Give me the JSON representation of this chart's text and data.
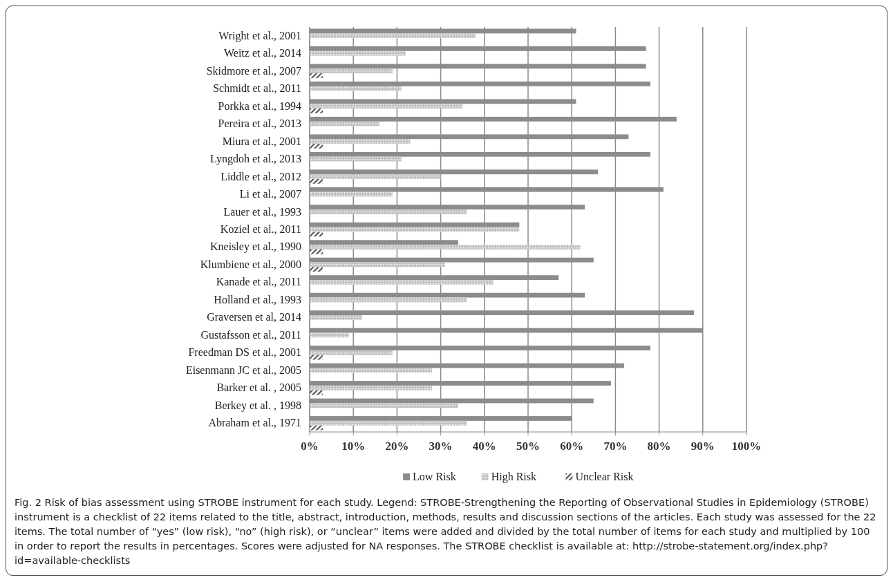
{
  "chart_data": {
    "type": "bar",
    "orientation": "horizontal",
    "categories": [
      "Wright et al., 2001",
      "Weitz et al., 2014",
      "Skidmore et al., 2007",
      "Schmidt et al., 2011",
      "Porkka et al., 1994",
      "Pereira et al., 2013",
      "Miura et al., 2001",
      "Lyngdoh et al., 2013",
      "Liddle et al., 2012",
      "Li et al., 2007",
      "Lauer et al., 1993",
      "Koziel et al., 2011",
      "Kneisley et al., 1990",
      "Klumbiene et al., 2000",
      "Kanade et al., 2011",
      "Holland et al., 1993",
      "Graversen et al, 2014",
      "Gustafsson et al., 2011",
      "Freedman DS et al., 2001",
      "Eisenmann JC et al., 2005",
      "Barker et al. , 2005",
      "Berkey et al. , 1998",
      "Abraham et al., 1971"
    ],
    "series": [
      {
        "name": "Low Risk",
        "color": "#8c8c8c",
        "values": [
          61,
          77,
          77,
          78,
          61,
          84,
          73,
          78,
          66,
          81,
          63,
          48,
          34,
          65,
          57,
          63,
          88,
          90,
          78,
          72,
          69,
          65,
          60
        ]
      },
      {
        "name": "High Risk",
        "color": "#c4c4c4",
        "values": [
          38,
          22,
          19,
          21,
          35,
          16,
          23,
          21,
          30,
          19,
          36,
          48,
          62,
          31,
          42,
          36,
          12,
          9,
          19,
          28,
          28,
          34,
          36
        ]
      },
      {
        "name": "Unclear Risk",
        "color": "#555555",
        "values": [
          null,
          null,
          3,
          null,
          3,
          null,
          3,
          null,
          3,
          null,
          null,
          3,
          3,
          3,
          null,
          null,
          null,
          null,
          3,
          null,
          3,
          null,
          3
        ]
      }
    ],
    "xlim": [
      0,
      100
    ],
    "xticks": [
      {
        "value": 0,
        "label": "0%"
      },
      {
        "value": 10,
        "label": "10%"
      },
      {
        "value": 20,
        "label": "20%"
      },
      {
        "value": 30,
        "label": "30%"
      },
      {
        "value": 40,
        "label": "40%"
      },
      {
        "value": 50,
        "label": "50%"
      },
      {
        "value": 60,
        "label": "60%"
      },
      {
        "value": 70,
        "label": "70%"
      },
      {
        "value": 80,
        "label": "80%"
      },
      {
        "value": 90,
        "label": "90%"
      },
      {
        "value": 100,
        "label": "100%"
      }
    ],
    "grid": "x",
    "legend": "bottom",
    "annotations": [
      "Fig. 2 Risk of bias assessment using STROBE instrument for each study. Legend: STROBE-Strengthening the Reporting of Observational Studies in Epidemiology (STROBE) instrument is a checklist of 22 items related to the title, abstract, introduction, methods, results and discussion sections of the articles. Each study was assessed for the 22 items. The total number of “yes” (low risk), “no” (high risk), or “unclear” items were added and divided by the total number of items for each study and multiplied by 100 in order to report the results in percentages. Scores were adjusted for NA responses. The STROBE checklist is available at: http://strobe-statement.org/index.php?id=available-checklists"
    ]
  }
}
